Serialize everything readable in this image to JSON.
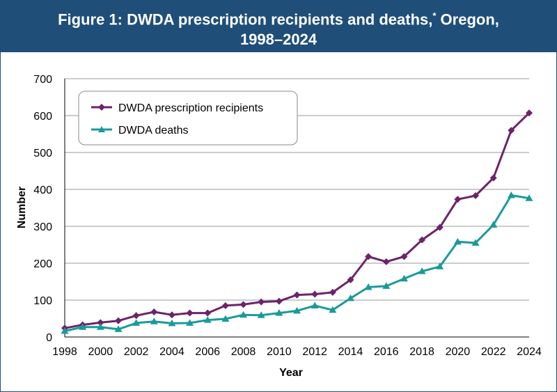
{
  "chart_data": {
    "type": "line",
    "title_line1": "Figure 1: DWDA prescription recipients and deaths,",
    "title_sup": "*",
    "title_line1_end": " Oregon,",
    "title_line2": "1998–2024",
    "xlabel": "Year",
    "ylabel": "Number",
    "ylim": [
      0,
      700
    ],
    "yticks": [
      "0",
      "100",
      "200",
      "300",
      "400",
      "500",
      "600",
      "700"
    ],
    "xlim": [
      1998,
      2024
    ],
    "xticks": [
      "1998",
      "2000",
      "2002",
      "2004",
      "2006",
      "2008",
      "2010",
      "2012",
      "2014",
      "2016",
      "2018",
      "2020",
      "2022",
      "2024"
    ],
    "grid": true,
    "legend_position": "top-left",
    "x": [
      1998,
      1999,
      2000,
      2001,
      2002,
      2003,
      2004,
      2005,
      2006,
      2007,
      2008,
      2009,
      2010,
      2011,
      2012,
      2013,
      2014,
      2015,
      2016,
      2017,
      2018,
      2019,
      2020,
      2021,
      2022,
      2023,
      2024
    ],
    "series": [
      {
        "name": "DWDA prescription recipients",
        "color": "#6b2469",
        "marker": "diamond",
        "values": [
          24,
          33,
          39,
          44,
          58,
          68,
          60,
          65,
          65,
          85,
          88,
          95,
          97,
          114,
          116,
          121,
          155,
          218,
          204,
          218,
          263,
          297,
          373,
          383,
          431,
          560,
          607
        ]
      },
      {
        "name": "DWDA deaths",
        "color": "#1a9a9a",
        "marker": "triangle",
        "values": [
          16,
          27,
          27,
          21,
          38,
          42,
          37,
          38,
          46,
          49,
          60,
          59,
          65,
          71,
          85,
          73,
          105,
          135,
          138,
          158,
          178,
          191,
          258,
          255,
          304,
          384,
          376
        ]
      }
    ]
  }
}
